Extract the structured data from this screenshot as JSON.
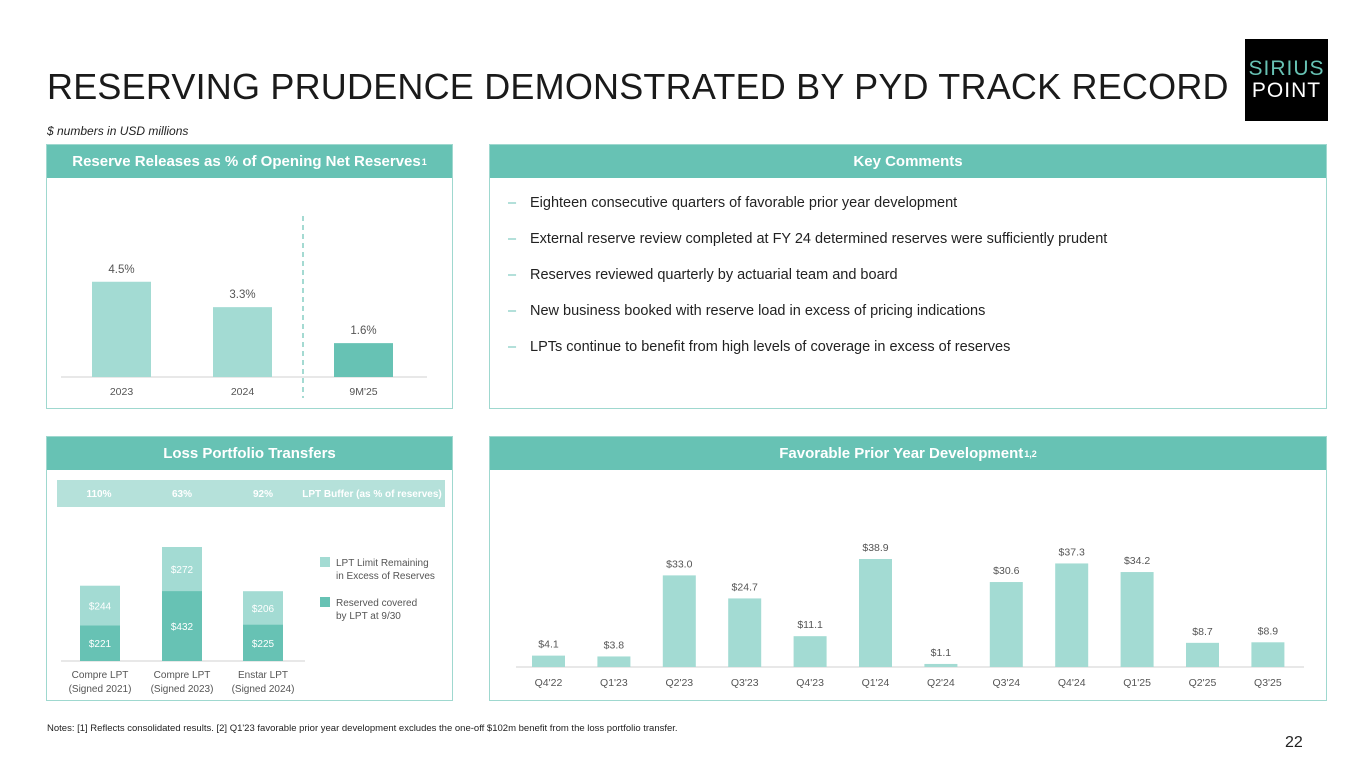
{
  "title": "RESERVING PRUDENCE DEMONSTRATED BY PYD TRACK RECORD",
  "subtitle": "$ numbers in USD millions",
  "logo": {
    "line1": "SIRIUS",
    "line2": "POINT"
  },
  "colors": {
    "teal": "#67c2b4",
    "light_teal": "#a3dbd3",
    "panel_border": "#9fd8cf",
    "buffer_bar": "#b5e1da"
  },
  "panels": {
    "reserve_releases": {
      "title": "Reserve Releases as % of Opening Net Reserves",
      "sup": "1"
    },
    "key_comments": {
      "title": "Key Comments"
    },
    "lpt": {
      "title": "Loss Portfolio Transfers"
    },
    "pyd": {
      "title": "Favorable Prior Year Development",
      "sup": "1,2"
    }
  },
  "key_comments": [
    "Eighteen consecutive quarters of favorable prior year development",
    "External reserve review completed at FY 24 determined reserves were sufficiently prudent",
    "Reserves reviewed quarterly by actuarial team and board",
    "New business booked with reserve load in excess of pricing indications",
    "LPTs continue to benefit from high levels of coverage in excess of reserves"
  ],
  "notes": "Notes: [1] Reflects consolidated results. [2] Q1'23 favorable prior year development excludes the one-off $102m benefit from the loss portfolio transfer.",
  "page_number": "22",
  "chart_data": [
    {
      "type": "bar",
      "title": "Reserve Releases as % of Opening Net Reserves",
      "categories": [
        "2023",
        "2024",
        "9M'25"
      ],
      "values": [
        4.5,
        3.3,
        1.6
      ],
      "labels": [
        "4.5%",
        "3.3%",
        "1.6%"
      ],
      "highlight": [
        false,
        false,
        true
      ],
      "ylim": [
        0,
        6
      ]
    },
    {
      "type": "bar",
      "stacked": true,
      "title": "Loss Portfolio Transfers",
      "categories": [
        "Compre LPT (Signed 2021)",
        "Compre LPT (Signed 2023)",
        "Enstar LPT (Signed 2024)"
      ],
      "series": [
        {
          "name": "Reserved covered by LPT at 9/30",
          "values": [
            221,
            432,
            225
          ],
          "labels": [
            "$221",
            "$432",
            "$225"
          ]
        },
        {
          "name": "LPT Limit Remaining in Excess of Reserves",
          "values": [
            244,
            272,
            206
          ],
          "labels": [
            "$244",
            "$272",
            "$206"
          ]
        }
      ],
      "buffer": {
        "label": "LPT Buffer (as % of reserves)",
        "values": [
          "110%",
          "63%",
          "92%"
        ]
      },
      "ylim": [
        0,
        750
      ]
    },
    {
      "type": "bar",
      "title": "Favorable Prior Year Development",
      "categories": [
        "Q4'22",
        "Q1'23",
        "Q2'23",
        "Q3'23",
        "Q4'23",
        "Q1'24",
        "Q2'24",
        "Q3'24",
        "Q4'24",
        "Q1'25",
        "Q2'25",
        "Q3'25"
      ],
      "values": [
        4.1,
        3.8,
        33.0,
        24.7,
        11.1,
        38.9,
        1.1,
        30.6,
        37.3,
        34.2,
        8.7,
        8.9
      ],
      "labels": [
        "$4.1",
        "$3.8",
        "$33.0",
        "$24.7",
        "$11.1",
        "$38.9",
        "$1.1",
        "$30.6",
        "$37.3",
        "$34.2",
        "$8.7",
        "$8.9"
      ],
      "ylim": [
        0,
        45
      ]
    }
  ]
}
